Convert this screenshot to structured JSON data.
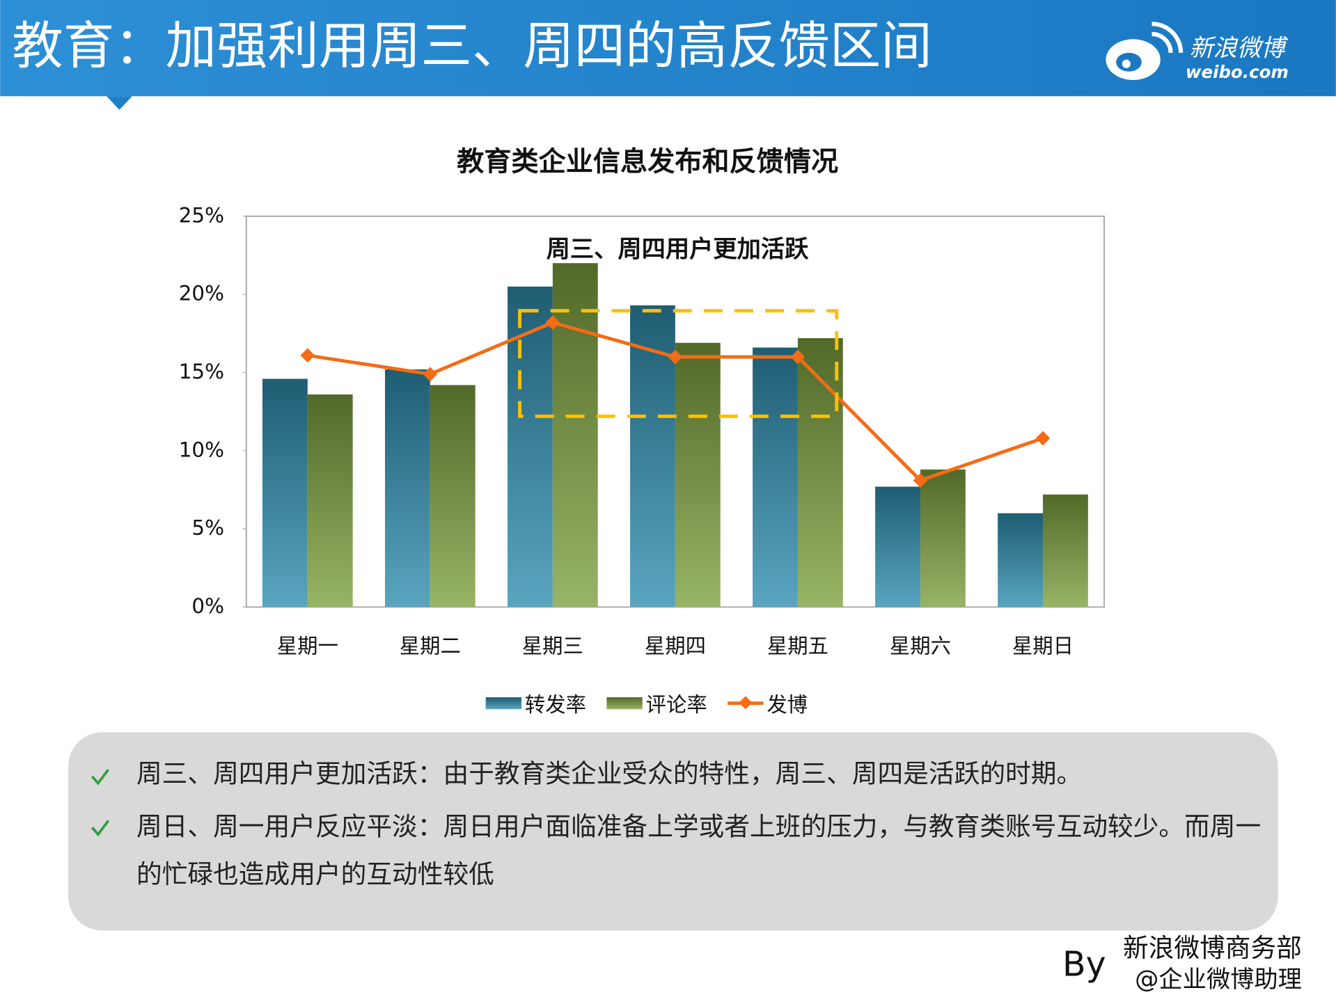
{
  "header": {
    "title": "教育：加强利用周三、周四的高反馈区间",
    "logo": "新浪微博",
    "logo_sub": "weibo.com"
  },
  "chart_data": {
    "type": "bar",
    "title": "教育类企业信息发布和反馈情况",
    "annotation": "周三、周四用户更加活跃",
    "categories": [
      "星期一",
      "星期二",
      "星期三",
      "星期四",
      "星期五",
      "星期六",
      "星期日"
    ],
    "series": [
      {
        "name": "转发率",
        "type": "bar",
        "color": "#2f8fb0",
        "values": [
          14.6,
          15.2,
          20.5,
          19.3,
          16.6,
          7.7,
          6.0
        ]
      },
      {
        "name": "评论率",
        "type": "bar",
        "color": "#7ea13f",
        "values": [
          13.6,
          14.2,
          22.0,
          16.9,
          17.2,
          8.8,
          7.2
        ]
      },
      {
        "name": "发博",
        "type": "line",
        "color": "#f56b16",
        "values": [
          16.1,
          14.9,
          18.2,
          16.0,
          16.0,
          8.1,
          10.8
        ]
      }
    ],
    "ylim": [
      0,
      25
    ],
    "yticks": [
      {
        "value": 0,
        "label": "0%"
      },
      {
        "value": 5,
        "label": "5%"
      },
      {
        "value": 10,
        "label": "10%"
      },
      {
        "value": 15,
        "label": "15%"
      },
      {
        "value": 20,
        "label": "20%"
      },
      {
        "value": 25,
        "label": "25%"
      }
    ],
    "grid": false,
    "legend": "bottom"
  },
  "notes": [
    "周三、周四用户更加活跃：由于教育类企业受众的特性，周三、周四是活跃的时期。",
    "周日、周一用户反应平淡：周日用户面临准备上学或者上班的压力，与教育类账号互动较少。而周一的忙碌也造成用户的互动性较低"
  ],
  "footer": {
    "by": "By",
    "line1": "新浪微博商务部",
    "line2": "@企业微博助理"
  }
}
